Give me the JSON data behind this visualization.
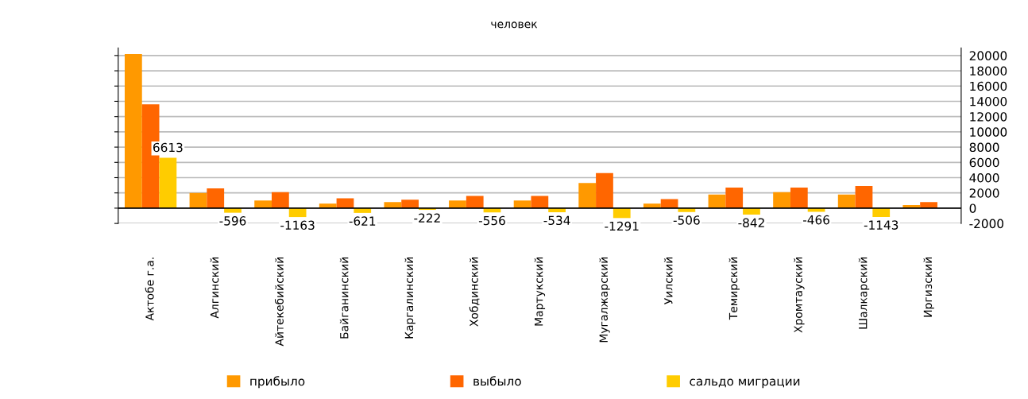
{
  "chart_data": {
    "type": "bar",
    "subtitle": "человек",
    "categories": [
      "Актобе г.а.",
      "Алгинский",
      "Айтекебийский",
      "Байганинский",
      "Каргалинский",
      "Хобдинский",
      "Мартукский",
      "Мугалжарский",
      "Уилский",
      "Темирский",
      "Хромтауский",
      "Шалкарский",
      "Иргизский"
    ],
    "series": [
      {
        "name": "прибыло",
        "color": "#ff9900",
        "values": [
          20200,
          2000,
          1000,
          600,
          800,
          1000,
          1000,
          3300,
          600,
          1800,
          2100,
          1800,
          400
        ]
      },
      {
        "name": "выбыло",
        "color": "#ff6600",
        "values": [
          13600,
          2600,
          2100,
          1300,
          1100,
          1600,
          1600,
          4600,
          1200,
          2700,
          2700,
          2900,
          800
        ]
      },
      {
        "name": "сальдо миграции",
        "color": "#ffcc00",
        "values": [
          6613,
          -596,
          -1163,
          -621,
          -222,
          -556,
          -534,
          -1291,
          -506,
          -842,
          -466,
          -1143,
          null
        ],
        "value_labels": [
          "6613",
          "-596",
          "-1163",
          "-621",
          "-222",
          "-556",
          "-534",
          "-1291",
          "-506",
          "-842",
          "-466",
          "-1143",
          null
        ]
      }
    ],
    "ylim": [
      -2000,
      21000
    ],
    "yticks": [
      -2000,
      0,
      2000,
      4000,
      6000,
      8000,
      10000,
      12000,
      14000,
      16000,
      18000,
      20000
    ],
    "grid": "y",
    "legend": "bottom"
  }
}
